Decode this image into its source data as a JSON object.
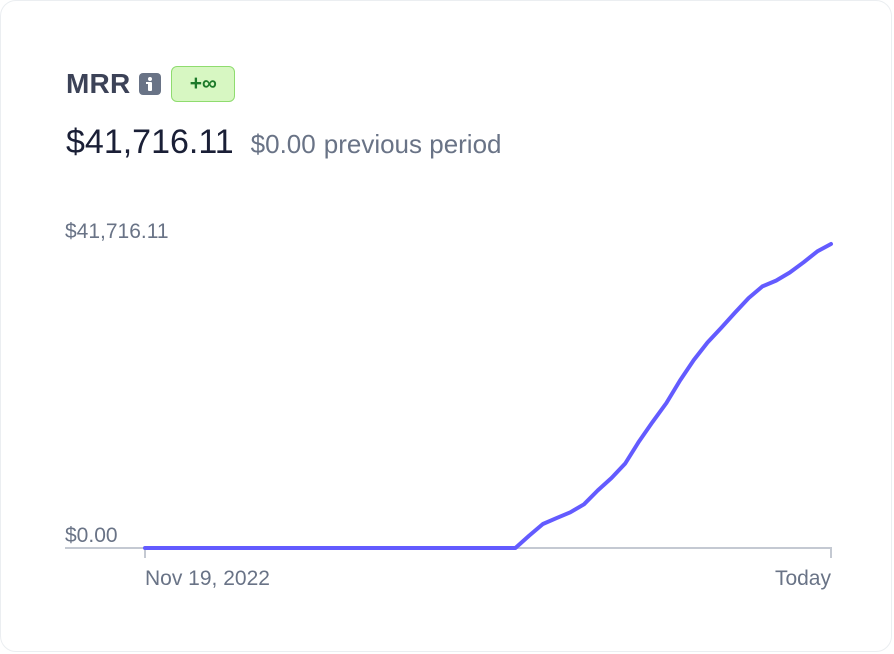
{
  "metric": {
    "title": "MRR",
    "info_icon": "info-icon",
    "change_badge": "+∞",
    "current_value": "$41,716.11",
    "previous_value": "$0.00",
    "previous_label": "previous period"
  },
  "colors": {
    "line": "#635bff",
    "badge_bg": "#d7f7c2",
    "badge_border": "#8fdc6f",
    "badge_text": "#1d7a2a",
    "axis": "#c4c9d2",
    "muted_text": "#697386"
  },
  "chart_data": {
    "type": "line",
    "title": "",
    "xlabel": "",
    "ylabel": "",
    "x_tick_labels": [
      "Nov 19, 2022",
      "Today"
    ],
    "y_tick_labels": [
      "$0.00",
      "$41,716.11"
    ],
    "ylim": [
      0,
      41716.11
    ],
    "grid": false,
    "series": [
      {
        "color": "#635bff",
        "x": [
          0,
          0.1,
          0.2,
          0.3,
          0.4,
          0.5,
          0.54,
          0.56,
          0.58,
          0.6,
          0.62,
          0.64,
          0.66,
          0.68,
          0.7,
          0.72,
          0.74,
          0.76,
          0.78,
          0.8,
          0.82,
          0.84,
          0.86,
          0.88,
          0.9,
          0.92,
          0.94,
          0.96,
          0.98,
          1.0
        ],
        "values": [
          0,
          0,
          0,
          0,
          0,
          0,
          0,
          1700,
          3300,
          4100,
          4900,
          6000,
          7900,
          9600,
          11600,
          14600,
          17300,
          19900,
          23000,
          25800,
          28200,
          30200,
          32300,
          34300,
          35900,
          36700,
          37800,
          39200,
          40700,
          41716.11
        ]
      }
    ]
  }
}
